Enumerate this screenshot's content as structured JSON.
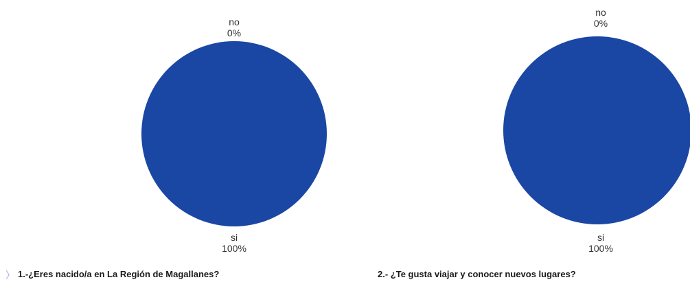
{
  "colors": {
    "primary_slice": "#1a47a3",
    "secondary_slice": "#c9d6ef"
  },
  "icon": "chevron-right-icon",
  "chart_data": [
    {
      "type": "pie",
      "title": "1.-¿Eres nacido/a en La Región de Magallanes?",
      "slices": [
        {
          "label": "si",
          "percent_label": "100%",
          "value": 100
        },
        {
          "label": "no",
          "percent_label": "0%",
          "value": 0
        }
      ]
    },
    {
      "type": "pie",
      "title": "2.- ¿Te gusta viajar y conocer nuevos lugares?",
      "slices": [
        {
          "label": "si",
          "percent_label": "100%",
          "value": 100
        },
        {
          "label": "no",
          "percent_label": "0%",
          "value": 0
        }
      ]
    }
  ]
}
